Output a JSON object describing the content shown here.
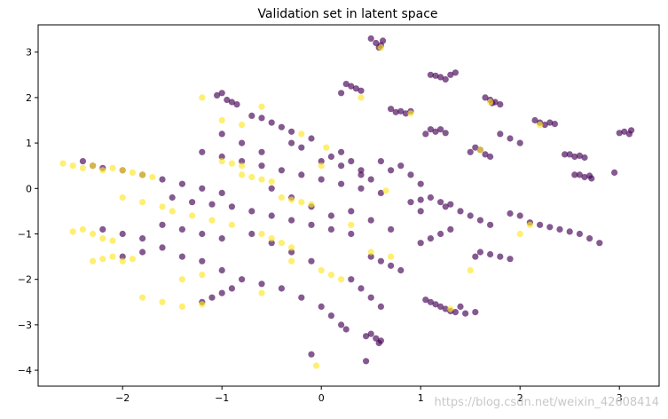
{
  "chart_data": {
    "type": "scatter",
    "title": "Validation set in latent space",
    "xlabel": "",
    "ylabel": "",
    "xlim": [
      -2.85,
      3.4
    ],
    "ylim": [
      -4.35,
      3.6
    ],
    "xticks": [
      -2,
      -1,
      0,
      1,
      2,
      3
    ],
    "yticks": [
      -4,
      -3,
      -2,
      -1,
      0,
      1,
      2,
      3
    ],
    "grid": false,
    "legend": "none",
    "colors": {
      "purple": "#440154",
      "yellow": "#fde725",
      "frame": "#000000"
    },
    "point_alpha": 0.65,
    "series": [
      {
        "color": "purple",
        "points": [
          [
            0.5,
            3.3
          ],
          [
            0.55,
            3.2
          ],
          [
            0.6,
            3.15
          ],
          [
            0.62,
            3.25
          ],
          [
            0.58,
            3.1
          ],
          [
            1.1,
            2.5
          ],
          [
            1.2,
            2.45
          ],
          [
            1.3,
            2.5
          ],
          [
            1.25,
            2.4
          ],
          [
            1.35,
            2.55
          ],
          [
            1.15,
            2.48
          ],
          [
            1.7,
            1.95
          ],
          [
            1.75,
            1.9
          ],
          [
            1.8,
            1.85
          ],
          [
            1.65,
            2.0
          ],
          [
            1.72,
            1.88
          ],
          [
            2.2,
            1.45
          ],
          [
            2.25,
            1.4
          ],
          [
            2.3,
            1.45
          ],
          [
            2.15,
            1.5
          ],
          [
            2.35,
            1.42
          ],
          [
            0.25,
            2.3
          ],
          [
            0.3,
            2.25
          ],
          [
            0.35,
            2.2
          ],
          [
            0.2,
            2.1
          ],
          [
            0.4,
            2.15
          ],
          [
            0.7,
            1.75
          ],
          [
            0.8,
            1.7
          ],
          [
            0.85,
            1.65
          ],
          [
            0.9,
            1.7
          ],
          [
            0.75,
            1.68
          ],
          [
            1.1,
            1.3
          ],
          [
            1.15,
            1.25
          ],
          [
            1.2,
            1.3
          ],
          [
            1.05,
            1.2
          ],
          [
            1.25,
            1.22
          ],
          [
            1.5,
            0.8
          ],
          [
            1.6,
            0.85
          ],
          [
            1.65,
            0.75
          ],
          [
            1.55,
            0.9
          ],
          [
            1.7,
            0.7
          ],
          [
            2.5,
            0.75
          ],
          [
            2.55,
            0.7
          ],
          [
            2.6,
            0.72
          ],
          [
            2.65,
            0.68
          ],
          [
            2.45,
            0.75
          ],
          [
            2.6,
            0.3
          ],
          [
            2.65,
            0.25
          ],
          [
            2.7,
            0.28
          ],
          [
            2.55,
            0.3
          ],
          [
            2.72,
            0.22
          ],
          [
            3.05,
            1.25
          ],
          [
            3.1,
            1.2
          ],
          [
            3.0,
            1.22
          ],
          [
            3.12,
            1.28
          ],
          [
            2.95,
            0.35
          ],
          [
            1.1,
            -0.2
          ],
          [
            1.2,
            -0.3
          ],
          [
            1.25,
            -0.4
          ],
          [
            1.3,
            -0.35
          ],
          [
            1.0,
            -0.25
          ],
          [
            1.6,
            -1.4
          ],
          [
            1.7,
            -1.45
          ],
          [
            1.8,
            -1.5
          ],
          [
            1.55,
            -1.5
          ],
          [
            1.9,
            -1.55
          ],
          [
            1.1,
            -2.5
          ],
          [
            1.15,
            -2.55
          ],
          [
            1.2,
            -2.6
          ],
          [
            1.25,
            -2.65
          ],
          [
            1.3,
            -2.7
          ],
          [
            1.35,
            -2.72
          ],
          [
            1.45,
            -2.75
          ],
          [
            1.55,
            -2.72
          ],
          [
            1.05,
            -2.45
          ],
          [
            1.4,
            -2.6
          ],
          [
            0.5,
            -3.2
          ],
          [
            0.55,
            -3.3
          ],
          [
            0.6,
            -3.35
          ],
          [
            0.45,
            -3.25
          ],
          [
            0.58,
            -3.4
          ],
          [
            2.2,
            -0.8
          ],
          [
            2.3,
            -0.85
          ],
          [
            2.4,
            -0.9
          ],
          [
            2.5,
            -0.95
          ],
          [
            2.6,
            -1.0
          ],
          [
            2.7,
            -1.1
          ],
          [
            2.1,
            -0.75
          ],
          [
            2.0,
            -0.6
          ],
          [
            1.9,
            -0.55
          ],
          [
            -1.0,
            2.1
          ],
          [
            -1.05,
            2.05
          ],
          [
            -0.95,
            1.95
          ],
          [
            -0.9,
            1.9
          ],
          [
            -0.85,
            1.85
          ],
          [
            -0.7,
            1.6
          ],
          [
            -0.6,
            1.55
          ],
          [
            -0.5,
            1.45
          ],
          [
            -0.4,
            1.35
          ],
          [
            -0.3,
            1.25
          ],
          [
            -1.2,
            0.8
          ],
          [
            -1.0,
            0.7
          ],
          [
            -0.8,
            0.6
          ],
          [
            -0.6,
            0.5
          ],
          [
            -0.4,
            0.4
          ],
          [
            -0.2,
            0.3
          ],
          [
            0.0,
            0.2
          ],
          [
            0.2,
            0.1
          ],
          [
            0.4,
            0.0
          ],
          [
            0.6,
            -0.1
          ],
          [
            -1.5,
            -0.2
          ],
          [
            -1.3,
            -0.3
          ],
          [
            -1.1,
            -0.35
          ],
          [
            -0.9,
            -0.4
          ],
          [
            -0.7,
            -0.5
          ],
          [
            -0.5,
            -0.6
          ],
          [
            -0.3,
            -0.7
          ],
          [
            -0.1,
            -0.8
          ],
          [
            0.1,
            -0.9
          ],
          [
            0.3,
            -1.0
          ],
          [
            -2.4,
            0.6
          ],
          [
            -2.3,
            0.5
          ],
          [
            -2.2,
            0.45
          ],
          [
            -2.0,
            0.4
          ],
          [
            -1.8,
            0.3
          ],
          [
            -1.6,
            0.2
          ],
          [
            -1.4,
            0.1
          ],
          [
            -1.2,
            0.0
          ],
          [
            -1.0,
            -0.1
          ],
          [
            -2.0,
            -1.5
          ],
          [
            -1.8,
            -1.4
          ],
          [
            -1.6,
            -1.3
          ],
          [
            -1.4,
            -1.5
          ],
          [
            -1.2,
            -1.6
          ],
          [
            -1.0,
            -1.8
          ],
          [
            -0.8,
            -2.0
          ],
          [
            -0.6,
            -2.1
          ],
          [
            -0.4,
            -2.2
          ],
          [
            -0.2,
            -2.4
          ],
          [
            0.0,
            -2.6
          ],
          [
            0.1,
            -2.8
          ],
          [
            0.2,
            -3.0
          ],
          [
            0.25,
            -3.1
          ],
          [
            -0.1,
            -3.65
          ],
          [
            0.45,
            -3.8
          ],
          [
            -1.2,
            -2.5
          ],
          [
            -1.1,
            -2.4
          ],
          [
            -1.0,
            -2.3
          ],
          [
            -0.9,
            -2.2
          ],
          [
            0.8,
            0.5
          ],
          [
            0.9,
            0.3
          ],
          [
            1.0,
            0.1
          ],
          [
            0.7,
            0.4
          ],
          [
            0.6,
            0.6
          ],
          [
            0.2,
            0.8
          ],
          [
            0.3,
            0.6
          ],
          [
            0.4,
            0.4
          ],
          [
            0.5,
            0.2
          ],
          [
            -0.1,
            1.1
          ],
          [
            -0.2,
            0.9
          ],
          [
            0.1,
            0.7
          ],
          [
            -0.3,
            1.0
          ],
          [
            0.5,
            -1.5
          ],
          [
            0.6,
            -1.6
          ],
          [
            0.7,
            -1.7
          ],
          [
            0.8,
            -1.8
          ],
          [
            0.3,
            -2.0
          ],
          [
            0.4,
            -2.2
          ],
          [
            0.5,
            -2.4
          ],
          [
            0.6,
            -2.6
          ],
          [
            1.0,
            -1.2
          ],
          [
            1.1,
            -1.1
          ],
          [
            1.2,
            -1.0
          ],
          [
            1.3,
            -0.9
          ],
          [
            1.4,
            -0.5
          ],
          [
            1.5,
            -0.6
          ],
          [
            1.6,
            -0.7
          ],
          [
            1.7,
            -0.8
          ],
          [
            -0.5,
            0.0
          ],
          [
            -0.3,
            -0.2
          ],
          [
            -0.1,
            -0.4
          ],
          [
            0.1,
            -0.6
          ],
          [
            -0.7,
            -1.0
          ],
          [
            -0.5,
            -1.2
          ],
          [
            -0.3,
            -1.4
          ],
          [
            -0.1,
            -1.6
          ],
          [
            -1.6,
            -0.8
          ],
          [
            -1.4,
            -0.9
          ],
          [
            -1.2,
            -1.0
          ],
          [
            -1.0,
            -1.1
          ],
          [
            -2.2,
            -0.9
          ],
          [
            -2.0,
            -1.0
          ],
          [
            -1.8,
            -1.1
          ],
          [
            0.0,
            0.6
          ],
          [
            0.2,
            0.5
          ],
          [
            0.4,
            0.3
          ],
          [
            0.9,
            -0.3
          ],
          [
            1.0,
            -0.5
          ],
          [
            -0.6,
            0.8
          ],
          [
            -0.8,
            1.0
          ],
          [
            -1.0,
            1.2
          ],
          [
            0.3,
            -0.5
          ],
          [
            0.5,
            -0.7
          ],
          [
            0.7,
            -0.9
          ],
          [
            2.0,
            1.0
          ],
          [
            1.9,
            1.1
          ],
          [
            1.8,
            1.2
          ],
          [
            2.8,
            -1.2
          ]
        ]
      },
      {
        "color": "yellow",
        "points": [
          [
            -2.6,
            0.55
          ],
          [
            -2.5,
            0.5
          ],
          [
            -2.4,
            0.45
          ],
          [
            -2.3,
            0.5
          ],
          [
            -2.2,
            0.4
          ],
          [
            -2.1,
            0.45
          ],
          [
            -2.0,
            0.4
          ],
          [
            -1.9,
            0.35
          ],
          [
            -1.8,
            0.3
          ],
          [
            -1.7,
            0.25
          ],
          [
            -2.5,
            -0.95
          ],
          [
            -2.4,
            -0.9
          ],
          [
            -2.3,
            -1.0
          ],
          [
            -2.2,
            -1.1
          ],
          [
            -2.1,
            -1.15
          ],
          [
            -2.3,
            -1.6
          ],
          [
            -2.2,
            -1.55
          ],
          [
            -2.1,
            -1.5
          ],
          [
            -2.0,
            -1.6
          ],
          [
            -1.9,
            -1.55
          ],
          [
            -1.8,
            -2.4
          ],
          [
            -1.6,
            -2.5
          ],
          [
            -1.4,
            -2.6
          ],
          [
            -1.2,
            -2.55
          ],
          [
            -0.8,
            0.3
          ],
          [
            -0.7,
            0.25
          ],
          [
            -0.6,
            0.2
          ],
          [
            -0.5,
            0.15
          ],
          [
            -0.4,
            -0.2
          ],
          [
            -0.3,
            -0.25
          ],
          [
            -0.2,
            -0.3
          ],
          [
            -0.1,
            -0.35
          ],
          [
            -1.0,
            0.6
          ],
          [
            -0.9,
            0.55
          ],
          [
            -0.8,
            0.5
          ],
          [
            -0.6,
            -1.0
          ],
          [
            -0.5,
            -1.1
          ],
          [
            -0.4,
            -1.2
          ],
          [
            -0.3,
            -1.3
          ],
          [
            0.0,
            -1.8
          ],
          [
            0.1,
            -1.9
          ],
          [
            0.2,
            -2.0
          ],
          [
            0.6,
            3.1
          ],
          [
            1.7,
            1.9
          ],
          [
            2.2,
            1.4
          ],
          [
            0.9,
            1.65
          ],
          [
            0.4,
            2.0
          ],
          [
            0.65,
            -0.05
          ],
          [
            1.5,
            -1.8
          ],
          [
            1.3,
            -2.65
          ],
          [
            2.1,
            -0.8
          ],
          [
            -0.05,
            -3.9
          ],
          [
            0.0,
            0.5
          ],
          [
            0.3,
            -0.8
          ],
          [
            -1.5,
            -0.5
          ],
          [
            -1.3,
            -0.6
          ],
          [
            -1.1,
            -0.7
          ],
          [
            -0.9,
            -0.8
          ],
          [
            -2.0,
            -0.2
          ],
          [
            -1.8,
            -0.3
          ],
          [
            -1.6,
            -0.4
          ],
          [
            -0.2,
            1.2
          ],
          [
            0.05,
            0.9
          ],
          [
            -1.0,
            1.5
          ],
          [
            -0.8,
            1.4
          ],
          [
            -1.2,
            2.0
          ],
          [
            -0.6,
            1.8
          ],
          [
            0.5,
            -1.4
          ],
          [
            0.7,
            -1.5
          ],
          [
            -0.3,
            -1.6
          ],
          [
            -0.6,
            -2.3
          ],
          [
            -1.4,
            -2.0
          ],
          [
            -1.2,
            -1.9
          ],
          [
            1.6,
            0.85
          ],
          [
            2.0,
            -1.0
          ]
        ]
      }
    ],
    "watermark": "https://blog.csdn.net/weixin_42608414"
  }
}
